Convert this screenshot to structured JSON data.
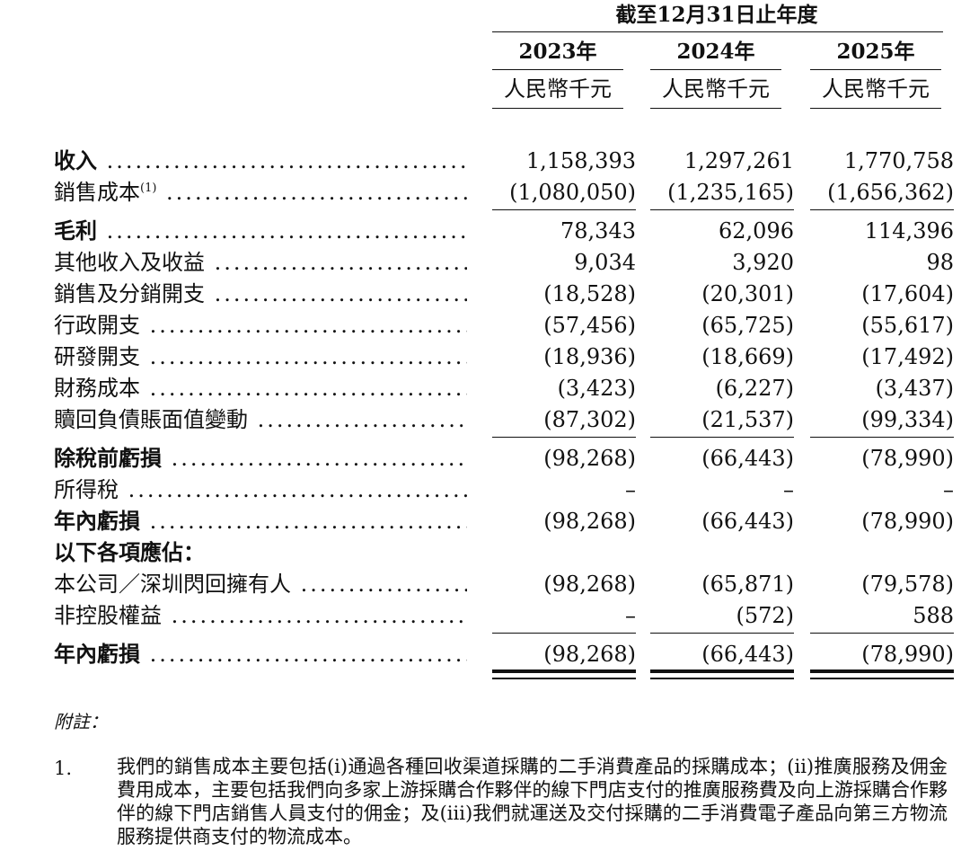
{
  "header": {
    "period_label": "截至12月31日止年度",
    "years": [
      "2023年",
      "2024年",
      "2025年"
    ],
    "units": [
      "人民幣千元",
      "人民幣千元",
      "人民幣千元"
    ]
  },
  "rows": [
    {
      "label": "收入",
      "sup": "",
      "bold": true,
      "values": [
        "1,158,393",
        "1,297,261",
        "1,770,758"
      ]
    },
    {
      "label": "銷售成本",
      "sup": "(1)",
      "bold": false,
      "values": [
        "(1,080,050)",
        "(1,235,165)",
        "(1,656,362)"
      ]
    },
    {
      "label": "毛利",
      "sup": "",
      "bold": true,
      "values": [
        "78,343",
        "62,096",
        "114,396"
      ]
    },
    {
      "label": "其他收入及收益",
      "sup": "",
      "bold": false,
      "values": [
        "9,034",
        "3,920",
        "98"
      ]
    },
    {
      "label": "銷售及分銷開支",
      "sup": "",
      "bold": false,
      "values": [
        "(18,528)",
        "(20,301)",
        "(17,604)"
      ]
    },
    {
      "label": "行政開支",
      "sup": "",
      "bold": false,
      "values": [
        "(57,456)",
        "(65,725)",
        "(55,617)"
      ]
    },
    {
      "label": "研發開支",
      "sup": "",
      "bold": false,
      "values": [
        "(18,936)",
        "(18,669)",
        "(17,492)"
      ]
    },
    {
      "label": "財務成本",
      "sup": "",
      "bold": false,
      "values": [
        "(3,423)",
        "(6,227)",
        "(3,437)"
      ]
    },
    {
      "label": "贖回負債賬面值變動",
      "sup": "",
      "bold": false,
      "values": [
        "(87,302)",
        "(21,537)",
        "(99,334)"
      ]
    },
    {
      "label": "除稅前虧損",
      "sup": "",
      "bold": true,
      "values": [
        "(98,268)",
        "(66,443)",
        "(78,990)"
      ]
    },
    {
      "label": "所得稅",
      "sup": "",
      "bold": false,
      "values": [
        "–",
        "–",
        "–"
      ]
    },
    {
      "label": "年內虧損",
      "sup": "",
      "bold": true,
      "values": [
        "(98,268)",
        "(66,443)",
        "(78,990)"
      ]
    },
    {
      "label": "以下各項應佔：",
      "sup": "",
      "bold": true,
      "values": [
        "",
        "",
        ""
      ]
    },
    {
      "label": "本公司／深圳閃回擁有人",
      "sup": "",
      "bold": false,
      "values": [
        "(98,268)",
        "(65,871)",
        "(79,578)"
      ]
    },
    {
      "label": "非控股權益",
      "sup": "",
      "bold": false,
      "values": [
        "–",
        "(572)",
        "588"
      ]
    },
    {
      "label": "年內虧損",
      "sup": "",
      "bold": true,
      "values": [
        "(98,268)",
        "(66,443)",
        "(78,990)"
      ]
    }
  ],
  "notes": {
    "title": "附註：",
    "items": [
      {
        "number": "1.",
        "text": "我們的銷售成本主要包括(i)通過各種回收渠道採購的二手消費產品的採購成本；(ii)推廣服務及佣金費用成本，主要包括我們向多家上游採購合作夥伴的線下門店支付的推廣服務費及向上游採購合作夥伴的線下門店銷售人員支付的佣金；及(iii)我們就運送及交付採購的二手消費電子產品向第三方物流服務提供商支付的物流成本。"
      }
    ]
  }
}
